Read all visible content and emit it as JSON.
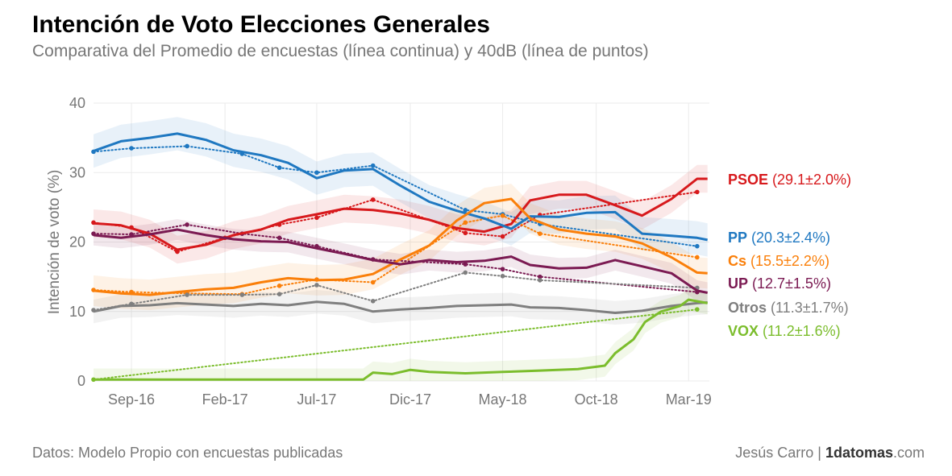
{
  "title": "Intención de Voto Elecciones Generales",
  "subtitle": "Comparativa del Promedio de encuestas (línea continua) y 40dB (línea de puntos)",
  "footer": {
    "source": "Datos: Modelo Propio con encuestas publicadas",
    "author": "Jesús Carro | ",
    "brand_bold": "1datomas",
    "brand_suffix": ".com"
  },
  "chart_data": {
    "type": "line",
    "ylabel": "Intención de voto (%)",
    "xlabel": "",
    "ylim": [
      0,
      40
    ],
    "yticks": [
      0,
      10,
      20,
      30,
      40
    ],
    "xlim": [
      "2016-07-01",
      "2019-04-04"
    ],
    "xticks": [
      {
        "label": "Sep-16",
        "date": "2016-09-01"
      },
      {
        "label": "Feb-17",
        "date": "2017-02-01"
      },
      {
        "label": "Jul-17",
        "date": "2017-07-01"
      },
      {
        "label": "Dic-17",
        "date": "2017-12-01"
      },
      {
        "label": "May-18",
        "date": "2018-05-01"
      },
      {
        "label": "Oct-18",
        "date": "2018-10-01"
      },
      {
        "label": "Mar-19",
        "date": "2019-03-01"
      }
    ],
    "grid": true,
    "legend": "right",
    "series": [
      {
        "name": "PSOE",
        "label_value": "(29.1±2.0%)",
        "color": "#d7191c",
        "band": 2.0,
        "average": [
          [
            "2016-07-01",
            22.7
          ],
          [
            "2016-08-15",
            22.4
          ],
          [
            "2016-10-01",
            21.2
          ],
          [
            "2016-11-15",
            18.9
          ],
          [
            "2017-01-01",
            19.6
          ],
          [
            "2017-02-15",
            21.0
          ],
          [
            "2017-04-01",
            21.8
          ],
          [
            "2017-05-15",
            23.2
          ],
          [
            "2017-07-01",
            24.0
          ],
          [
            "2017-08-15",
            24.8
          ],
          [
            "2017-10-01",
            24.6
          ],
          [
            "2017-11-15",
            24.1
          ],
          [
            "2018-01-01",
            23.2
          ],
          [
            "2018-02-15",
            22.0
          ],
          [
            "2018-04-01",
            21.5
          ],
          [
            "2018-05-15",
            22.6
          ],
          [
            "2018-06-15",
            26.0
          ],
          [
            "2018-08-01",
            26.8
          ],
          [
            "2018-09-15",
            26.8
          ],
          [
            "2018-11-01",
            25.3
          ],
          [
            "2018-12-15",
            23.8
          ],
          [
            "2019-02-01",
            26.2
          ],
          [
            "2019-03-15",
            29.1
          ],
          [
            "2019-04-01",
            29.1
          ]
        ],
        "fortydb": [
          [
            "2016-07-01",
            22.8
          ],
          [
            "2016-09-01",
            22.1
          ],
          [
            "2016-11-15",
            18.6
          ],
          [
            "2017-02-01",
            20.6
          ],
          [
            "2017-05-01",
            22.5
          ],
          [
            "2017-07-01",
            23.5
          ],
          [
            "2017-10-01",
            26.1
          ],
          [
            "2018-03-01",
            21.3
          ],
          [
            "2018-05-01",
            20.8
          ],
          [
            "2018-07-01",
            23.9
          ],
          [
            "2019-03-15",
            27.2
          ]
        ]
      },
      {
        "name": "PP",
        "label_value": "(20.3±2.4%)",
        "color": "#1f78c1",
        "band": 2.4,
        "average": [
          [
            "2016-07-01",
            33.1
          ],
          [
            "2016-08-15",
            34.5
          ],
          [
            "2016-10-01",
            35.0
          ],
          [
            "2016-11-15",
            35.6
          ],
          [
            "2017-01-01",
            34.7
          ],
          [
            "2017-02-15",
            33.2
          ],
          [
            "2017-04-01",
            32.5
          ],
          [
            "2017-05-15",
            31.4
          ],
          [
            "2017-07-01",
            29.2
          ],
          [
            "2017-08-15",
            30.3
          ],
          [
            "2017-10-01",
            30.5
          ],
          [
            "2017-11-15",
            28.1
          ],
          [
            "2018-01-01",
            25.8
          ],
          [
            "2018-02-15",
            24.5
          ],
          [
            "2018-04-01",
            23.4
          ],
          [
            "2018-05-15",
            21.9
          ],
          [
            "2018-06-15",
            23.7
          ],
          [
            "2018-08-01",
            23.6
          ],
          [
            "2018-09-15",
            24.2
          ],
          [
            "2018-11-01",
            24.3
          ],
          [
            "2018-12-15",
            21.2
          ],
          [
            "2019-02-01",
            20.9
          ],
          [
            "2019-03-15",
            20.6
          ],
          [
            "2019-04-01",
            20.3
          ]
        ],
        "fortydb": [
          [
            "2016-07-01",
            33.0
          ],
          [
            "2016-09-01",
            33.5
          ],
          [
            "2016-12-01",
            33.8
          ],
          [
            "2017-03-01",
            32.7
          ],
          [
            "2017-05-01",
            30.7
          ],
          [
            "2017-07-01",
            30.0
          ],
          [
            "2017-10-01",
            31.0
          ],
          [
            "2018-03-01",
            24.6
          ],
          [
            "2018-05-01",
            24.0
          ],
          [
            "2018-07-01",
            22.6
          ],
          [
            "2019-03-15",
            19.4
          ]
        ]
      },
      {
        "name": "Cs",
        "label_value": "(15.5±2.2%)",
        "color": "#fa7f0a",
        "band": 2.2,
        "average": [
          [
            "2016-07-01",
            13.0
          ],
          [
            "2016-08-15",
            12.6
          ],
          [
            "2016-10-01",
            12.4
          ],
          [
            "2016-11-15",
            12.8
          ],
          [
            "2017-01-01",
            13.2
          ],
          [
            "2017-02-15",
            13.4
          ],
          [
            "2017-04-01",
            14.2
          ],
          [
            "2017-05-15",
            14.8
          ],
          [
            "2017-07-01",
            14.5
          ],
          [
            "2017-08-15",
            14.6
          ],
          [
            "2017-10-01",
            15.4
          ],
          [
            "2017-11-15",
            17.5
          ],
          [
            "2018-01-01",
            19.5
          ],
          [
            "2018-02-15",
            23.1
          ],
          [
            "2018-04-01",
            25.6
          ],
          [
            "2018-05-15",
            26.2
          ],
          [
            "2018-06-15",
            23.4
          ],
          [
            "2018-08-01",
            21.8
          ],
          [
            "2018-09-15",
            21.2
          ],
          [
            "2018-11-01",
            20.8
          ],
          [
            "2018-12-15",
            19.8
          ],
          [
            "2019-02-01",
            17.8
          ],
          [
            "2019-03-15",
            15.6
          ],
          [
            "2019-04-01",
            15.5
          ]
        ],
        "fortydb": [
          [
            "2016-07-01",
            13.1
          ],
          [
            "2016-09-01",
            12.8
          ],
          [
            "2016-12-01",
            12.6
          ],
          [
            "2017-03-01",
            12.5
          ],
          [
            "2017-05-01",
            13.7
          ],
          [
            "2017-07-01",
            14.6
          ],
          [
            "2017-10-01",
            14.2
          ],
          [
            "2018-03-01",
            22.8
          ],
          [
            "2018-05-01",
            23.8
          ],
          [
            "2018-07-01",
            21.2
          ],
          [
            "2019-03-15",
            17.8
          ]
        ]
      },
      {
        "name": "UP",
        "label_value": "(12.7±1.5%)",
        "color": "#7b1a52",
        "band": 1.5,
        "average": [
          [
            "2016-07-01",
            21.0
          ],
          [
            "2016-08-15",
            20.6
          ],
          [
            "2016-10-01",
            21.1
          ],
          [
            "2016-11-15",
            21.8
          ],
          [
            "2017-01-01",
            21.0
          ],
          [
            "2017-02-15",
            20.4
          ],
          [
            "2017-04-01",
            20.1
          ],
          [
            "2017-05-15",
            20.0
          ],
          [
            "2017-07-01",
            19.1
          ],
          [
            "2017-08-15",
            18.3
          ],
          [
            "2017-10-01",
            17.4
          ],
          [
            "2017-11-15",
            16.8
          ],
          [
            "2018-01-01",
            17.4
          ],
          [
            "2018-02-15",
            17.1
          ],
          [
            "2018-04-01",
            17.3
          ],
          [
            "2018-05-15",
            17.9
          ],
          [
            "2018-06-15",
            16.7
          ],
          [
            "2018-08-01",
            16.2
          ],
          [
            "2018-09-15",
            16.3
          ],
          [
            "2018-11-01",
            17.4
          ],
          [
            "2018-12-15",
            16.5
          ],
          [
            "2019-02-01",
            15.5
          ],
          [
            "2019-03-15",
            13.0
          ],
          [
            "2019-04-01",
            12.7
          ]
        ],
        "fortydb": [
          [
            "2016-07-01",
            21.2
          ],
          [
            "2016-09-01",
            21.1
          ],
          [
            "2016-12-01",
            22.5
          ],
          [
            "2017-03-01",
            21.2
          ],
          [
            "2017-05-01",
            20.6
          ],
          [
            "2017-07-01",
            19.4
          ],
          [
            "2017-10-01",
            17.5
          ],
          [
            "2018-03-01",
            16.8
          ],
          [
            "2018-05-01",
            16.1
          ],
          [
            "2018-07-01",
            15.0
          ],
          [
            "2019-03-15",
            12.8
          ]
        ]
      },
      {
        "name": "Otros",
        "label_value": "(11.3±1.7%)",
        "color": "#7f7f7f",
        "band": 1.7,
        "average": [
          [
            "2016-07-01",
            10.0
          ],
          [
            "2016-08-15",
            10.8
          ],
          [
            "2016-10-01",
            10.9
          ],
          [
            "2016-11-15",
            11.2
          ],
          [
            "2017-01-01",
            11.0
          ],
          [
            "2017-02-15",
            10.8
          ],
          [
            "2017-04-01",
            11.1
          ],
          [
            "2017-05-15",
            10.9
          ],
          [
            "2017-07-01",
            11.4
          ],
          [
            "2017-08-15",
            11.1
          ],
          [
            "2017-10-01",
            10.0
          ],
          [
            "2017-11-15",
            10.3
          ],
          [
            "2018-01-01",
            10.5
          ],
          [
            "2018-02-15",
            10.8
          ],
          [
            "2018-04-01",
            10.9
          ],
          [
            "2018-05-15",
            11.0
          ],
          [
            "2018-06-15",
            10.6
          ],
          [
            "2018-08-01",
            10.5
          ],
          [
            "2018-09-15",
            10.2
          ],
          [
            "2018-11-01",
            9.8
          ],
          [
            "2018-12-15",
            10.1
          ],
          [
            "2019-02-01",
            10.8
          ],
          [
            "2019-03-15",
            11.2
          ],
          [
            "2019-04-01",
            11.3
          ]
        ],
        "fortydb": [
          [
            "2016-07-01",
            10.2
          ],
          [
            "2016-09-01",
            11.1
          ],
          [
            "2016-12-01",
            12.4
          ],
          [
            "2017-03-01",
            12.4
          ],
          [
            "2017-05-01",
            12.5
          ],
          [
            "2017-07-01",
            13.8
          ],
          [
            "2017-10-01",
            11.5
          ],
          [
            "2018-03-01",
            15.6
          ],
          [
            "2018-05-01",
            15.1
          ],
          [
            "2018-07-01",
            14.5
          ],
          [
            "2019-03-15",
            13.4
          ]
        ]
      },
      {
        "name": "VOX",
        "label_value": "(11.2±1.6%)",
        "color": "#7bbd2c",
        "band": 1.6,
        "average": [
          [
            "2016-07-01",
            0.2
          ],
          [
            "2016-10-01",
            0.2
          ],
          [
            "2017-01-01",
            0.2
          ],
          [
            "2017-04-01",
            0.2
          ],
          [
            "2017-07-01",
            0.2
          ],
          [
            "2017-09-15",
            0.2
          ],
          [
            "2017-10-01",
            1.2
          ],
          [
            "2017-11-01",
            1.0
          ],
          [
            "2017-12-01",
            1.6
          ],
          [
            "2018-01-01",
            1.3
          ],
          [
            "2018-03-01",
            1.1
          ],
          [
            "2018-05-01",
            1.3
          ],
          [
            "2018-07-01",
            1.5
          ],
          [
            "2018-09-01",
            1.7
          ],
          [
            "2018-10-15",
            2.2
          ],
          [
            "2018-11-01",
            4.0
          ],
          [
            "2018-12-01",
            6.0
          ],
          [
            "2018-12-20",
            8.5
          ],
          [
            "2019-01-15",
            10.0
          ],
          [
            "2019-02-15",
            10.8
          ],
          [
            "2019-03-01",
            11.7
          ],
          [
            "2019-04-01",
            11.2
          ]
        ],
        "fortydb": [
          [
            "2016-07-01",
            0.2
          ],
          [
            "2019-03-15",
            10.3
          ]
        ]
      }
    ]
  }
}
